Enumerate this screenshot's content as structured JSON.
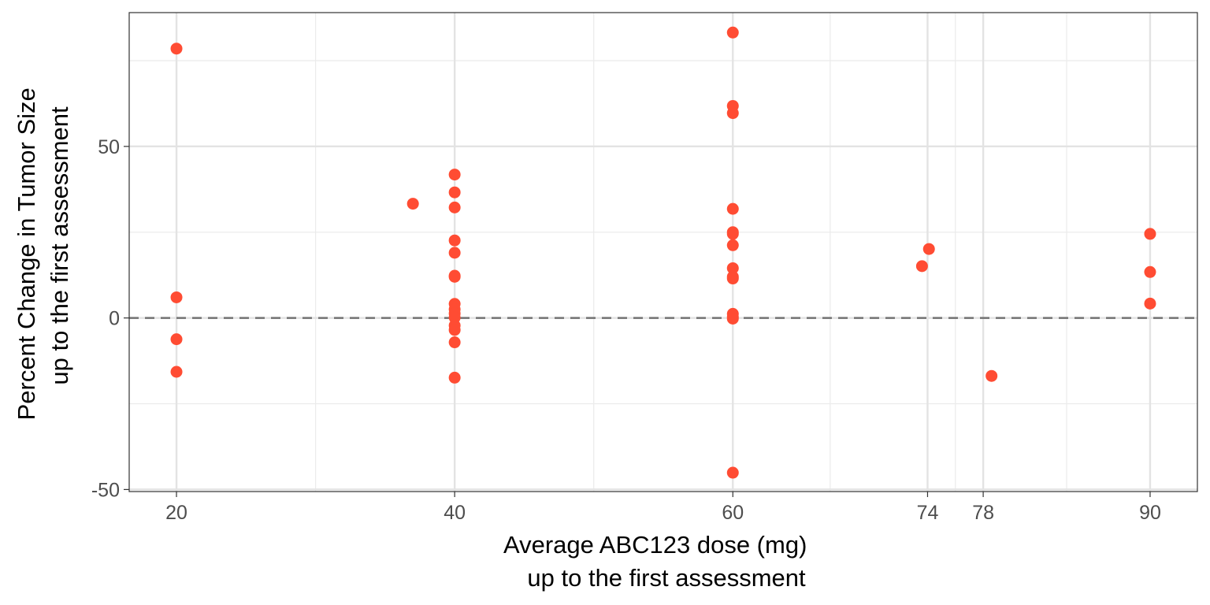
{
  "chart_data": {
    "type": "scatter",
    "xlabel": [
      "Average ABC123 dose (mg)",
      "up to the first assessment"
    ],
    "ylabel": [
      "Percent Change in Tumor Size",
      "up to the first assessment"
    ],
    "x_ticks": [
      20,
      40,
      60,
      74,
      78,
      90
    ],
    "x_minor_gridlines": [
      30,
      50,
      67,
      76,
      84
    ],
    "y_ticks": [
      -50,
      0,
      50
    ],
    "y_minor_gridlines": [
      -25,
      25,
      75
    ],
    "xlim": [
      16.6,
      93.4
    ],
    "ylim": [
      -50.6,
      89.0
    ],
    "grid": true,
    "reference_line": {
      "y": 0,
      "style": "dashed",
      "color": "#737373"
    },
    "point_color": "#ff4c33",
    "points": [
      {
        "x": 20,
        "y": 78.5
      },
      {
        "x": 20,
        "y": 6
      },
      {
        "x": 20,
        "y": -6.2
      },
      {
        "x": 20,
        "y": -15.7
      },
      {
        "x": 37,
        "y": 33.3
      },
      {
        "x": 40,
        "y": 41.8
      },
      {
        "x": 40,
        "y": 36.6
      },
      {
        "x": 40,
        "y": 32.2
      },
      {
        "x": 40,
        "y": 22.6
      },
      {
        "x": 40,
        "y": 19
      },
      {
        "x": 40,
        "y": 12.3
      },
      {
        "x": 40,
        "y": 12
      },
      {
        "x": 40,
        "y": 4.1
      },
      {
        "x": 40,
        "y": 2.5
      },
      {
        "x": 40,
        "y": 1.3
      },
      {
        "x": 40,
        "y": 0.1
      },
      {
        "x": 40,
        "y": -2.2
      },
      {
        "x": 40,
        "y": -3.5
      },
      {
        "x": 40,
        "y": -7.1
      },
      {
        "x": 40,
        "y": -17.4
      },
      {
        "x": 60,
        "y": 83.2
      },
      {
        "x": 60,
        "y": 61.8
      },
      {
        "x": 60,
        "y": 59.7
      },
      {
        "x": 60,
        "y": 31.8
      },
      {
        "x": 60,
        "y": 25
      },
      {
        "x": 60,
        "y": 24.5
      },
      {
        "x": 60,
        "y": 21.2
      },
      {
        "x": 60,
        "y": 14.5
      },
      {
        "x": 60,
        "y": 12
      },
      {
        "x": 60,
        "y": 11.5
      },
      {
        "x": 60,
        "y": 1.2
      },
      {
        "x": 60,
        "y": 0.3
      },
      {
        "x": 60,
        "y": -0.2
      },
      {
        "x": 60,
        "y": -45.1
      },
      {
        "x": 73.6,
        "y": 15.1
      },
      {
        "x": 74.1,
        "y": 20.1
      },
      {
        "x": 78.6,
        "y": -16.9
      },
      {
        "x": 90,
        "y": 24.5
      },
      {
        "x": 90,
        "y": 13.4
      },
      {
        "x": 90,
        "y": 4.2
      }
    ]
  }
}
